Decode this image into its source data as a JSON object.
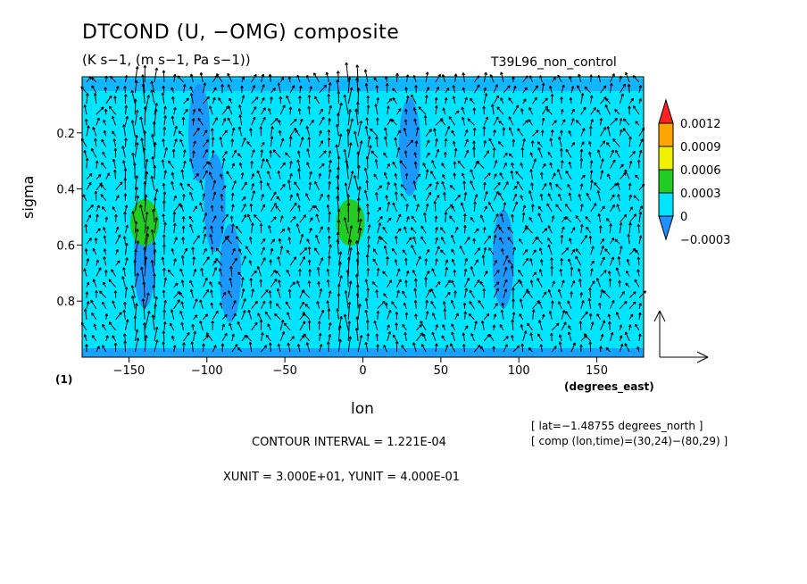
{
  "header": {
    "title": "DTCOND (U, −OMG) composite",
    "subtitle": "(K s−1, (m s−1, Pa s−1))",
    "run_name": "T39L96_non_control"
  },
  "footer": {
    "contour_interval": "CONTOUR INTERVAL = 1.221E-04",
    "xyunit": "XUNIT = 3.000E+01, YUNIT = 4.000E-01",
    "lat_note": "[ lat=−1.48755 degrees_north ]",
    "comp_note": "[ comp (lon,time)=(30,24)−(80,29) ]",
    "footnote_mark": "(1)"
  },
  "colors": {
    "shade_neg": "#1e90ff",
    "shade_zero": "#00e5ff",
    "shade_0003": "#22cc22",
    "shade_0006": "#f0f000",
    "shade_0009": "#ffa500",
    "shade_max": "#ff2020",
    "arrow": "#000000"
  },
  "chart_data": {
    "type": "heatmap",
    "title": "DTCOND (U, −OMG) composite",
    "subtitle": "(K s−1, (m s−1, Pa s−1))",
    "xlabel": "lon",
    "xunits": "(degrees_east)",
    "ylabel": "sigma",
    "xlim": [
      -180,
      180
    ],
    "ylim": [
      1.0,
      0.0
    ],
    "y_inverted": true,
    "xticks": [
      -150,
      -100,
      -50,
      0,
      50,
      100,
      150
    ],
    "xtick_labels": [
      "−150",
      "−100",
      "−50",
      "0",
      "50",
      "100",
      "150"
    ],
    "yticks": [
      0.2,
      0.4,
      0.6,
      0.8
    ],
    "ytick_labels": [
      "0.2",
      "0.4",
      "0.6",
      "0.8"
    ],
    "colorbar": {
      "levels": [
        -0.0003,
        0,
        0.0003,
        0.0006,
        0.0009,
        0.0012
      ],
      "labels": [
        "−0.0003",
        "0",
        "0.0003",
        "0.0006",
        "0.0009",
        "0.0012"
      ]
    },
    "vector_field": "U, −OMG",
    "positive_regions": [
      {
        "lon": -140,
        "sigma": 0.52,
        "level": 0.0003
      },
      {
        "lon": -8,
        "sigma": 0.52,
        "level": 0.0003
      }
    ],
    "negative_regions": [
      {
        "lon": -105,
        "sigma": 0.2
      },
      {
        "lon": -95,
        "sigma": 0.45
      },
      {
        "lon": -85,
        "sigma": 0.7
      },
      {
        "lon": 30,
        "sigma": 0.25
      },
      {
        "lon": 90,
        "sigma": 0.65
      },
      {
        "lon": -140,
        "sigma": 0.65
      }
    ],
    "reference_vector": "XUNIT = 3.000E+01, YUNIT = 4.000E-01"
  }
}
